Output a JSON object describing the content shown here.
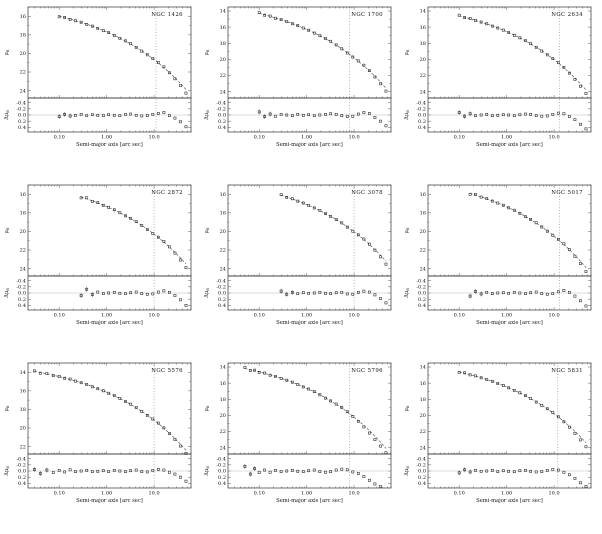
{
  "figure": {
    "xlabel": "Semi-major axis [arc sec]",
    "mu_label": "μ",
    "mu_sub": "B",
    "dmu_label": "Δμ",
    "marker_color": "#222222",
    "line_color": "#333333",
    "x_ticks": [
      {
        "v": 0.1,
        "label": "0.10"
      },
      {
        "v": 1.0,
        "label": "1.00"
      },
      {
        "v": 10.0,
        "label": "10.0"
      }
    ]
  },
  "chart_data": [
    {
      "type": "scatter",
      "title": "NGC 1426",
      "xlabel": "Semi-major axis [arc sec]",
      "ylabel": "μ_B",
      "res_ylabel": "Δμ_B",
      "xlim": [
        0.022,
        60
      ],
      "ylim": [
        15,
        24.8
      ],
      "yticks": [
        16,
        18,
        20,
        22,
        24
      ],
      "res_ylim": [
        -0.55,
        0.55
      ],
      "res_yticks": [
        -0.4,
        -0.2,
        0,
        0.2,
        0.4
      ],
      "vline": 11,
      "a": [
        0.1,
        0.13,
        0.17,
        0.22,
        0.29,
        0.38,
        0.5,
        0.65,
        0.85,
        1.1,
        1.45,
        1.9,
        2.5,
        3.2,
        4.2,
        5.5,
        7.2,
        9.4,
        12.3,
        16.1,
        21.0,
        27.5,
        36.0,
        47.0
      ],
      "mu_model": [
        16.0,
        16.14,
        16.31,
        16.47,
        16.66,
        16.85,
        17.07,
        17.29,
        17.53,
        17.77,
        18.05,
        18.35,
        18.67,
        18.97,
        19.34,
        19.72,
        20.13,
        20.56,
        21.03,
        21.53,
        22.06,
        22.63,
        23.24,
        23.89
      ],
      "dmu": [
        0.05,
        -0.02,
        0.03,
        0.01,
        -0.02,
        0.02,
        -0.01,
        0.01,
        0.02,
        -0.01,
        0.01,
        0.02,
        -0.02,
        -0.03,
        0.01,
        0.03,
        0.02,
        -0.02,
        -0.05,
        -0.08,
        0.02,
        0.1,
        0.22,
        0.38
      ]
    },
    {
      "type": "scatter",
      "title": "NGC 1700",
      "xlabel": "Semi-major axis [arc sec]",
      "ylabel": "μ_B",
      "res_ylabel": "Δμ_B",
      "xlim": [
        0.022,
        60
      ],
      "ylim": [
        13.5,
        24.8
      ],
      "yticks": [
        14,
        16,
        18,
        20,
        22,
        24
      ],
      "res_ylim": [
        -0.55,
        0.55
      ],
      "res_yticks": [
        -0.4,
        -0.2,
        0,
        0.2,
        0.4
      ],
      "vline": 8,
      "a": [
        0.1,
        0.13,
        0.17,
        0.22,
        0.29,
        0.38,
        0.5,
        0.65,
        0.85,
        1.1,
        1.45,
        1.9,
        2.5,
        3.2,
        4.2,
        5.5,
        7.2,
        9.4,
        12.3,
        16.1,
        21.0,
        27.5,
        36.0,
        47.0
      ],
      "mu_model": [
        14.3,
        14.47,
        14.66,
        14.86,
        15.08,
        15.31,
        15.56,
        15.82,
        16.1,
        16.39,
        16.72,
        17.07,
        17.44,
        17.8,
        18.23,
        18.68,
        19.16,
        19.67,
        20.23,
        20.81,
        21.44,
        22.11,
        22.83,
        23.59
      ],
      "dmu": [
        -0.1,
        0.05,
        -0.03,
        0.04,
        -0.02,
        0.0,
        0.02,
        -0.02,
        0.01,
        -0.01,
        0.02,
        0.0,
        -0.02,
        -0.04,
        -0.02,
        0.02,
        0.05,
        0.04,
        -0.03,
        -0.08,
        -0.05,
        0.08,
        0.2,
        0.35
      ]
    },
    {
      "type": "scatter",
      "title": "NGC 2634",
      "xlabel": "Semi-major axis [arc sec]",
      "ylabel": "μ_B",
      "res_ylabel": "Δμ_B",
      "xlim": [
        0.022,
        60
      ],
      "ylim": [
        13.5,
        24.8
      ],
      "yticks": [
        14,
        16,
        18,
        20,
        22,
        24
      ],
      "res_ylim": [
        -0.55,
        0.55
      ],
      "res_yticks": [
        -0.4,
        -0.2,
        0,
        0.2,
        0.4
      ],
      "vline": 13,
      "a": [
        0.1,
        0.13,
        0.17,
        0.22,
        0.29,
        0.38,
        0.5,
        0.65,
        0.85,
        1.1,
        1.45,
        1.9,
        2.5,
        3.2,
        4.2,
        5.5,
        7.2,
        9.4,
        12.3,
        16.1,
        21.0,
        27.5,
        36.0,
        47.0
      ],
      "mu_model": [
        14.6,
        14.77,
        14.96,
        15.15,
        15.37,
        15.6,
        15.85,
        16.1,
        16.38,
        16.67,
        16.99,
        17.34,
        17.71,
        18.07,
        18.49,
        18.93,
        19.41,
        19.92,
        20.46,
        21.04,
        21.66,
        22.33,
        23.04,
        23.79
      ],
      "dmu": [
        -0.08,
        0.04,
        -0.04,
        0.02,
        0.0,
        -0.02,
        0.02,
        0.01,
        -0.01,
        0.0,
        0.02,
        -0.01,
        -0.03,
        -0.02,
        0.02,
        0.04,
        0.03,
        -0.02,
        -0.06,
        -0.04,
        0.05,
        0.15,
        0.3,
        0.45
      ]
    },
    {
      "type": "scatter",
      "title": "NGC 2872",
      "xlabel": "Semi-major axis [arc sec]",
      "ylabel": "μ_B",
      "res_ylabel": "Δμ_B",
      "xlim": [
        0.022,
        60
      ],
      "ylim": [
        15,
        24.8
      ],
      "yticks": [
        16,
        18,
        20,
        22,
        24
      ],
      "res_ylim": [
        -0.55,
        0.55
      ],
      "res_yticks": [
        -0.4,
        -0.2,
        0,
        0.2,
        0.4
      ],
      "vline": 10,
      "a": [
        0.29,
        0.38,
        0.5,
        0.65,
        0.85,
        1.1,
        1.45,
        1.9,
        2.5,
        3.2,
        4.2,
        5.5,
        7.2,
        9.4,
        12.3,
        16.1,
        21.0,
        27.5,
        36.0,
        47.0
      ],
      "mu_model": [
        16.3,
        16.5,
        16.71,
        16.93,
        17.17,
        17.41,
        17.69,
        17.98,
        18.3,
        18.61,
        18.97,
        19.35,
        19.76,
        20.19,
        20.65,
        21.15,
        21.68,
        22.25,
        22.86,
        23.5
      ],
      "dmu": [
        0.08,
        -0.12,
        0.05,
        -0.03,
        0.02,
        0.0,
        -0.02,
        0.01,
        0.02,
        -0.01,
        -0.03,
        0.02,
        0.04,
        0.03,
        -0.03,
        -0.07,
        -0.02,
        0.08,
        0.22,
        0.4
      ]
    },
    {
      "type": "scatter",
      "title": "NGC 3078",
      "xlabel": "Semi-major axis [arc sec]",
      "ylabel": "μ_B",
      "res_ylabel": "Δμ_B",
      "xlim": [
        0.022,
        60
      ],
      "ylim": [
        15,
        24.8
      ],
      "yticks": [
        16,
        18,
        20,
        22,
        24
      ],
      "res_ylim": [
        -0.55,
        0.55
      ],
      "res_yticks": [
        -0.4,
        -0.2,
        0,
        0.2,
        0.4
      ],
      "vline": 10,
      "a": [
        0.29,
        0.38,
        0.5,
        0.65,
        0.85,
        1.1,
        1.45,
        1.9,
        2.5,
        3.2,
        4.2,
        5.5,
        7.2,
        9.4,
        12.3,
        16.1,
        21.0,
        27.5,
        36.0,
        47.0
      ],
      "mu_model": [
        16.1,
        16.29,
        16.5,
        16.72,
        16.95,
        17.19,
        17.47,
        17.76,
        18.07,
        18.37,
        18.73,
        19.1,
        19.51,
        19.93,
        20.39,
        20.88,
        21.4,
        21.96,
        22.56,
        23.2
      ],
      "dmu": [
        -0.06,
        0.04,
        -0.02,
        0.02,
        -0.01,
        0.01,
        0.0,
        -0.02,
        0.01,
        0.02,
        -0.01,
        -0.02,
        0.03,
        0.04,
        -0.02,
        -0.06,
        -0.03,
        0.06,
        0.18,
        0.32
      ]
    },
    {
      "type": "scatter",
      "title": "NGC 5017",
      "xlabel": "Semi-major axis [arc sec]",
      "ylabel": "μ_B",
      "res_ylabel": "Δμ_B",
      "xlim": [
        0.022,
        60
      ],
      "ylim": [
        15,
        24.8
      ],
      "yticks": [
        16,
        18,
        20,
        22,
        24
      ],
      "res_ylim": [
        -0.55,
        0.55
      ],
      "res_yticks": [
        -0.4,
        -0.2,
        0,
        0.2,
        0.4
      ],
      "vline": 13,
      "a": [
        0.17,
        0.22,
        0.29,
        0.38,
        0.5,
        0.65,
        0.85,
        1.1,
        1.45,
        1.9,
        2.5,
        3.2,
        4.2,
        5.5,
        7.2,
        9.4,
        12.3,
        16.1,
        21.0,
        27.5,
        36.0,
        47.0
      ],
      "mu_model": [
        15.9,
        16.07,
        16.27,
        16.48,
        16.71,
        16.94,
        17.19,
        17.45,
        17.74,
        18.05,
        18.39,
        18.71,
        19.1,
        19.5,
        19.93,
        20.39,
        20.89,
        21.41,
        21.97,
        22.57,
        23.22,
        23.9
      ],
      "dmu": [
        0.1,
        -0.05,
        0.03,
        -0.02,
        0.02,
        0.0,
        -0.01,
        0.01,
        -0.02,
        0.0,
        0.02,
        -0.01,
        -0.03,
        0.02,
        0.04,
        0.02,
        -0.04,
        -0.08,
        -0.02,
        0.1,
        0.25,
        0.42
      ]
    },
    {
      "type": "scatter",
      "title": "NGC 5576",
      "xlabel": "Semi-major axis [arc sec]",
      "ylabel": "μ_B",
      "res_ylabel": "Δμ_B",
      "xlim": [
        0.022,
        60
      ],
      "ylim": [
        13,
        22.8
      ],
      "yticks": [
        14,
        16,
        18,
        20,
        22
      ],
      "res_ylim": [
        -0.55,
        0.55
      ],
      "res_yticks": [
        -0.4,
        -0.2,
        0,
        0.2,
        0.4
      ],
      "vline": 10,
      "a": [
        0.03,
        0.04,
        0.055,
        0.075,
        0.1,
        0.13,
        0.17,
        0.22,
        0.29,
        0.38,
        0.5,
        0.65,
        0.85,
        1.1,
        1.45,
        1.9,
        2.5,
        3.2,
        4.2,
        5.5,
        7.2,
        9.4,
        12.3,
        16.1,
        21.0,
        27.5,
        36.0,
        47.0
      ],
      "mu_model": [
        13.9,
        14.02,
        14.16,
        14.31,
        14.46,
        14.61,
        14.77,
        14.93,
        15.12,
        15.32,
        15.54,
        15.76,
        16.0,
        16.24,
        16.52,
        16.82,
        17.14,
        17.45,
        17.82,
        18.2,
        18.61,
        19.05,
        19.52,
        20.02,
        20.55,
        21.13,
        21.74,
        22.4
      ],
      "dmu": [
        -0.05,
        0.08,
        -0.03,
        0.05,
        -0.02,
        0.03,
        -0.04,
        0.02,
        0.0,
        -0.02,
        0.02,
        0.01,
        -0.01,
        0.02,
        -0.02,
        0.0,
        0.02,
        -0.01,
        -0.03,
        0.02,
        0.03,
        -0.02,
        -0.05,
        -0.03,
        0.04,
        0.1,
        0.2,
        0.33
      ]
    },
    {
      "type": "scatter",
      "title": "NGC 5796",
      "xlabel": "Semi-major axis [arc sec]",
      "ylabel": "μ_B",
      "res_ylabel": "Δμ_B",
      "xlim": [
        0.022,
        60
      ],
      "ylim": [
        13.5,
        24.8
      ],
      "yticks": [
        14,
        16,
        18,
        20,
        22,
        24
      ],
      "res_ylim": [
        -0.55,
        0.55
      ],
      "res_yticks": [
        -0.4,
        -0.2,
        0,
        0.2,
        0.4
      ],
      "vline": 8,
      "a": [
        0.05,
        0.065,
        0.08,
        0.1,
        0.13,
        0.17,
        0.22,
        0.29,
        0.38,
        0.5,
        0.65,
        0.85,
        1.1,
        1.45,
        1.9,
        2.5,
        3.2,
        4.2,
        5.5,
        7.2,
        9.4,
        12.3,
        16.1,
        21.0,
        27.5,
        36.0,
        47.0
      ],
      "mu_model": [
        14.2,
        14.34,
        14.47,
        14.61,
        14.78,
        14.98,
        15.18,
        15.4,
        15.64,
        15.9,
        16.16,
        16.45,
        16.74,
        17.08,
        17.43,
        17.82,
        18.19,
        18.63,
        19.08,
        19.58,
        20.1,
        20.66,
        21.26,
        21.9,
        22.59,
        23.32,
        24.1
      ],
      "dmu": [
        -0.15,
        0.1,
        -0.08,
        0.05,
        -0.03,
        0.04,
        -0.02,
        0.02,
        0.0,
        -0.02,
        0.01,
        0.02,
        -0.01,
        -0.03,
        0.02,
        0.04,
        0.02,
        -0.03,
        -0.06,
        -0.04,
        0.03,
        0.08,
        0.18,
        0.3,
        0.42,
        0.5,
        0.55
      ]
    },
    {
      "type": "scatter",
      "title": "NGC 5831",
      "xlabel": "Semi-major axis [arc sec]",
      "ylabel": "μ_B",
      "res_ylabel": "Δμ_B",
      "xlim": [
        0.022,
        60
      ],
      "ylim": [
        13.5,
        24.8
      ],
      "yticks": [
        14,
        16,
        18,
        20,
        22,
        24
      ],
      "res_ylim": [
        -0.55,
        0.55
      ],
      "res_yticks": [
        -0.4,
        -0.2,
        0,
        0.2,
        0.4
      ],
      "vline": 12,
      "a": [
        0.1,
        0.13,
        0.17,
        0.22,
        0.29,
        0.38,
        0.5,
        0.65,
        0.85,
        1.1,
        1.45,
        1.9,
        2.5,
        3.2,
        4.2,
        5.5,
        7.2,
        9.4,
        12.3,
        16.1,
        21.0,
        27.5,
        36.0,
        47.0
      ],
      "mu_model": [
        14.6,
        14.76,
        14.94,
        15.12,
        15.33,
        15.55,
        15.79,
        16.03,
        16.3,
        16.57,
        16.89,
        17.21,
        17.57,
        17.91,
        18.32,
        18.74,
        19.2,
        19.68,
        20.21,
        20.76,
        21.35,
        21.99,
        22.67,
        23.4
      ],
      "dmu": [
        0.06,
        -0.04,
        0.03,
        -0.02,
        0.01,
        0.0,
        -0.02,
        0.02,
        -0.01,
        0.01,
        0.02,
        -0.01,
        -0.02,
        0.01,
        0.03,
        0.02,
        -0.02,
        -0.05,
        -0.03,
        0.04,
        0.12,
        0.24,
        0.38,
        0.5
      ]
    }
  ]
}
